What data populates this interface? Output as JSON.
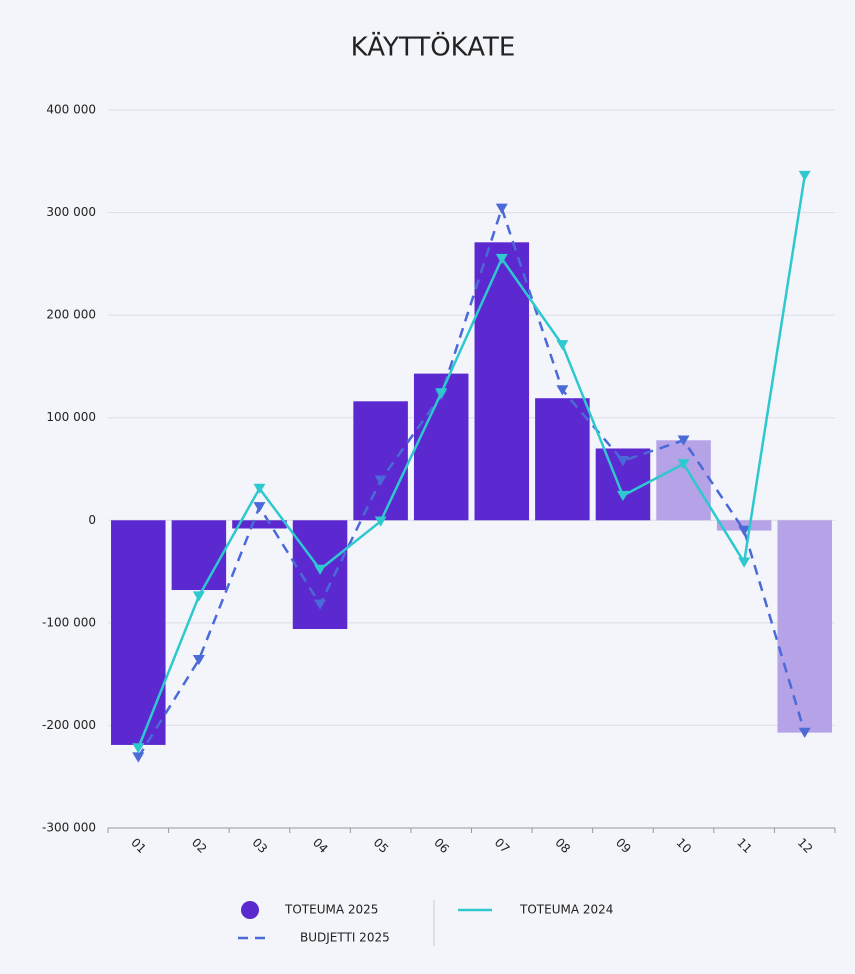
{
  "chart_data": {
    "type": "combo",
    "title": "KÄYTTÖKATE",
    "categories": [
      "01",
      "02",
      "03",
      "04",
      "05",
      "06",
      "07",
      "08",
      "09",
      "10",
      "11",
      "12"
    ],
    "ylim": [
      -300000,
      400000
    ],
    "yticks": [
      {
        "value": -300000,
        "label": "-300 000"
      },
      {
        "value": -200000,
        "label": "-200 000"
      },
      {
        "value": -100000,
        "label": "-100 000"
      },
      0,
      {
        "value": 100000,
        "label": "100 000"
      },
      {
        "value": 200000,
        "label": "200 000"
      },
      {
        "value": 300000,
        "label": "300 000"
      },
      {
        "value": 400000,
        "label": "400 000"
      }
    ],
    "grid": true,
    "series": [
      {
        "name": "TOTEUMA 2025",
        "type": "bar",
        "color": "#5c28cf",
        "colors": [
          "#5c28cf",
          "#5c28cf",
          "#5c28cf",
          "#5c28cf",
          "#5c28cf",
          "#5c28cf",
          "#5c28cf",
          "#5c28cf",
          "#5c28cf",
          "#b6a2e6",
          "#b6a2e6",
          "#b6a2e6"
        ],
        "values": [
          -219000,
          -68000,
          -8000,
          -106000,
          116000,
          143000,
          271000,
          119000,
          70000,
          78000,
          -10000,
          -207000
        ]
      },
      {
        "name": "BUDJETTI 2025",
        "type": "line",
        "dashed": true,
        "color": "#4a6ad8",
        "values": [
          -231000,
          -136000,
          13000,
          -82000,
          39000,
          122000,
          304000,
          127000,
          58000,
          78000,
          -10000,
          -207000
        ]
      },
      {
        "name": "TOTEUMA 2024",
        "type": "line",
        "dashed": false,
        "color": "#2ec8cf",
        "values": [
          -222000,
          -74000,
          31000,
          -48000,
          -1000,
          124000,
          255000,
          171000,
          24000,
          55000,
          -41000,
          336000
        ]
      }
    ]
  }
}
